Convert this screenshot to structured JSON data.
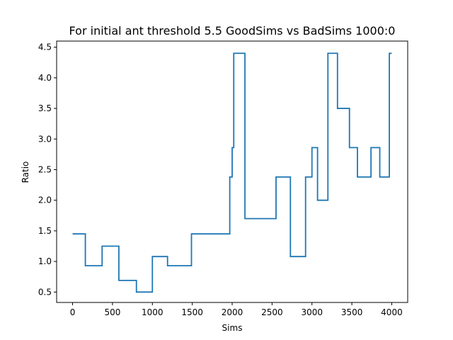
{
  "chart_data": {
    "type": "line",
    "title": "For initial ant threshold 5.5 GoodSims vs BadSims 1000:0",
    "xlabel": "Sims",
    "ylabel": "Ratio",
    "xlim": [
      -200,
      4200
    ],
    "ylim": [
      0.33,
      4.6
    ],
    "xticks": [
      0,
      500,
      1000,
      1500,
      2000,
      2500,
      3000,
      3500,
      4000
    ],
    "xtick_labels": [
      "0",
      "500",
      "1000",
      "1500",
      "2000",
      "2500",
      "3000",
      "3500",
      "4000"
    ],
    "yticks": [
      0.5,
      1.0,
      1.5,
      2.0,
      2.5,
      3.0,
      3.5,
      4.0,
      4.5
    ],
    "ytick_labels": [
      "0.5",
      "1.0",
      "1.5",
      "2.0",
      "2.5",
      "3.0",
      "3.5",
      "4.0",
      "4.5"
    ],
    "grid": false,
    "line_style": "step",
    "series": [
      {
        "color": "#1f77b4",
        "x": [
          0,
          160,
          160,
          370,
          370,
          580,
          580,
          800,
          800,
          1000,
          1000,
          1190,
          1190,
          1490,
          1490,
          1970,
          1970,
          2000,
          2000,
          2020,
          2020,
          2160,
          2160,
          2550,
          2550,
          2730,
          2730,
          2920,
          2920,
          3000,
          3000,
          3070,
          3070,
          3200,
          3200,
          3320,
          3320,
          3470,
          3470,
          3570,
          3570,
          3740,
          3740,
          3850,
          3850,
          3970,
          3970,
          4000
        ],
        "y": [
          1.45,
          1.45,
          0.93,
          0.93,
          1.25,
          1.25,
          0.69,
          0.69,
          0.5,
          0.5,
          1.08,
          1.08,
          0.93,
          0.93,
          1.45,
          1.45,
          2.38,
          2.38,
          2.86,
          2.86,
          4.4,
          4.4,
          1.7,
          1.7,
          2.38,
          2.38,
          1.08,
          1.08,
          2.38,
          2.38,
          2.86,
          2.86,
          2.0,
          2.0,
          4.4,
          4.4,
          3.5,
          3.5,
          2.86,
          2.86,
          2.38,
          2.38,
          2.86,
          2.86,
          2.38,
          2.38,
          4.4,
          4.4
        ]
      }
    ]
  }
}
